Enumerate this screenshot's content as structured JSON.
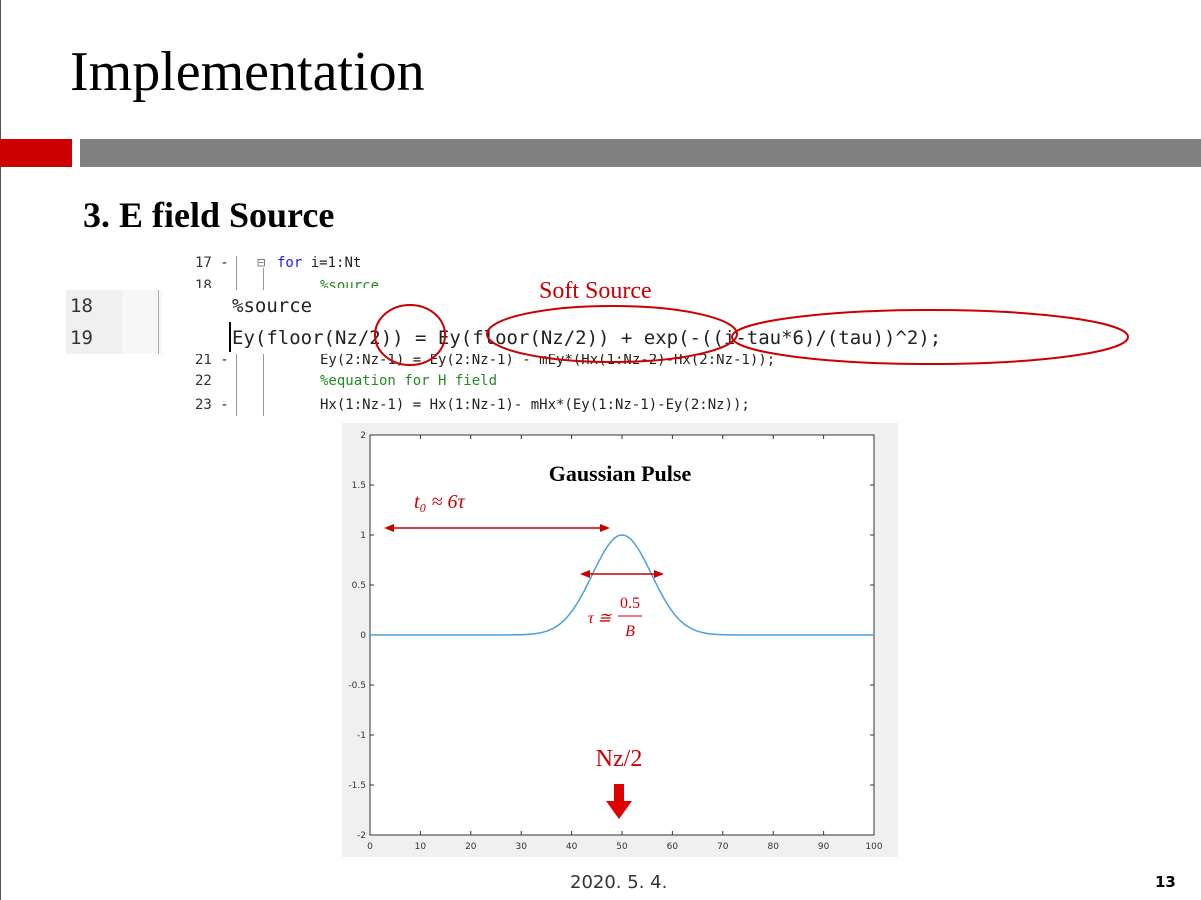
{
  "slide": {
    "title": "Implementation",
    "section": "3. E field Source",
    "date": "2020. 5. 4.",
    "page_number": "13"
  },
  "code_small": {
    "line17": {
      "num": "17",
      "marker": "-",
      "keyword": "for",
      "rest": " i=1:Nt"
    },
    "line18_partial": {
      "num": "18",
      "text": "%source"
    },
    "line21_partial": {
      "num": "21",
      "marker": "-",
      "text": "Ey(2:Nz-1) = Ey(2:Nz-1) - mEy*(Hx(1:Nz-2)-Hx(2:Nz-1));"
    },
    "line22": {
      "num": "22",
      "text": "%equation for H field"
    },
    "line23": {
      "num": "23",
      "marker": "-",
      "text": "Hx(1:Nz-1) = Hx(1:Nz-1)- mHx*(Ey(1:Nz-1)-Ey(2:Nz));"
    }
  },
  "code_large": {
    "line18": {
      "num": "18",
      "text": "%source"
    },
    "line19": {
      "num": "19",
      "text": "Ey(floor(Nz/2)) = Ey(floor(Nz/2)) + exp(-((i-tau*6)/(tau))^2);"
    }
  },
  "annotations": {
    "soft_source": "Soft Source",
    "t0_label": "t₀ ≈ 6τ",
    "tau_lhs": "τ ≅",
    "tau_num": "0.5",
    "tau_den": "B",
    "nz_label": "Nz/2"
  },
  "chart_data": {
    "type": "line",
    "title": "Gaussian Pulse",
    "xlabel": "",
    "ylabel": "",
    "xlim": [
      0,
      100
    ],
    "ylim": [
      -2,
      2
    ],
    "xticks": [
      0,
      10,
      20,
      30,
      40,
      50,
      60,
      70,
      80,
      90,
      100
    ],
    "yticks": [
      -2,
      -1.5,
      -1,
      -0.5,
      0,
      0.5,
      1,
      1.5,
      2
    ],
    "ytick_labels": [
      "-2",
      "-1.5",
      "-1",
      "-0.5",
      "0",
      "0.5",
      "1",
      "1.5",
      "2"
    ],
    "series": [
      {
        "center": 50,
        "width": 8.3,
        "amplitude": 1,
        "color": "#4a9fdc"
      }
    ]
  },
  "colors": {
    "accent_red": "#cc0000",
    "curve_blue": "#4a9fdc",
    "bar_gray": "#808080"
  }
}
